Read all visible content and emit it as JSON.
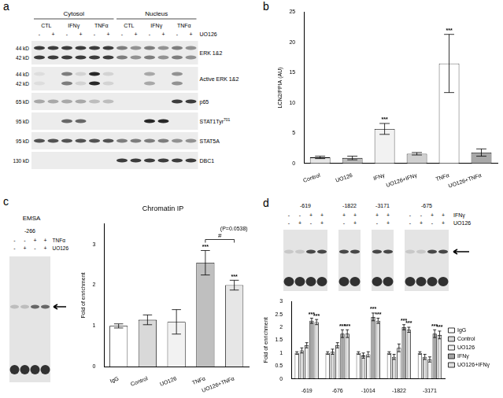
{
  "letters": [
    "a",
    "b",
    "c",
    "d"
  ],
  "blot_a": {
    "compartments": [
      "Cytosol",
      "Nucleus"
    ],
    "treatments": [
      "CTL",
      "IFNγ",
      "TNFα"
    ],
    "inhibitor": {
      "name": "UO126",
      "signs": [
        "-",
        "+",
        "-",
        "+",
        "-",
        "+"
      ]
    },
    "rows": [
      {
        "name": "ERK 1&2",
        "mw": [
          "44 kD",
          "42 kD"
        ]
      },
      {
        "name": "Active ERK 1&2",
        "mw": [
          "44 kD",
          "42 kD"
        ]
      },
      {
        "name": "p65",
        "mw": [
          "65 kD"
        ]
      },
      {
        "name": "STAT1Tyr",
        "sup": "701",
        "mw": [
          "95 kD"
        ]
      },
      {
        "name": "STAT5A",
        "mw": [
          "95 kD"
        ]
      },
      {
        "name": "DBC1",
        "mw": [
          "130 kD"
        ]
      }
    ]
  },
  "emsa_c": {
    "label": "EMSA",
    "probe": "-266",
    "rows": [
      {
        "name": "TNFα",
        "signs": [
          "-",
          "-",
          "+",
          "+"
        ]
      },
      {
        "name": "UO126",
        "signs": [
          "-",
          "+",
          "-",
          "+"
        ]
      }
    ]
  },
  "emsa_d": {
    "row_names": [
      "IFNγ",
      "UO126"
    ],
    "groups": [
      {
        "probe": "-619",
        "signs": [
          [
            "-",
            "-",
            "+",
            "+"
          ],
          [
            "-",
            "+",
            "-",
            "+"
          ]
        ]
      },
      {
        "probe": "-1822",
        "signs": [
          [
            "+",
            "+"
          ],
          [
            "-",
            "+"
          ]
        ]
      },
      {
        "probe": "-3171",
        "signs": [
          [
            "+",
            "+"
          ],
          [
            "-",
            "+"
          ]
        ]
      },
      {
        "probe": "-675",
        "signs": [
          [
            "-",
            "-",
            "+",
            "+"
          ],
          [
            "-",
            "+",
            "-",
            "+"
          ]
        ]
      }
    ]
  },
  "chart_data": [
    {
      "type": "bar",
      "ylabel": "LCN2/PPIA (AU)",
      "categories": [
        "Control",
        "UO126",
        "IFNγ",
        "UO126+IFNγ",
        "TNFα",
        "UO126+TNFα"
      ],
      "values": [
        1,
        0.9,
        5.7,
        1.6,
        16.5,
        1.8
      ],
      "errors": [
        0.2,
        0.3,
        0.9,
        0.2,
        4.8,
        0.6
      ],
      "colors": [
        "#e6e6e6",
        "#bdbdbd",
        "#f2f2f2",
        "#d0d0d0",
        "#ffffff",
        "#a8a8a8"
      ],
      "ylim": [
        0,
        25
      ],
      "yticks": [
        0,
        5,
        10,
        15,
        20,
        25
      ],
      "annotations": [
        {
          "category": "IFNγ",
          "text": "***"
        },
        {
          "category": "TNFα",
          "text": "***"
        }
      ]
    },
    {
      "type": "bar",
      "title": "Chromatin IP",
      "ylabel": "Fold of enrichment",
      "categories": [
        "IgG",
        "Control",
        "UO126",
        "TNFα",
        "UO126+TNFα"
      ],
      "values": [
        1,
        1.15,
        1.1,
        2.55,
        2
      ],
      "errors": [
        0.05,
        0.12,
        0.3,
        0.3,
        0.12
      ],
      "colors": [
        "#ffffff",
        "#d9d9d9",
        "#f2f2f2",
        "#bfbfbf",
        "#e6e6e6"
      ],
      "ylim": [
        0,
        3.5
      ],
      "yticks": [
        0,
        1,
        2,
        3
      ],
      "annotations": [
        {
          "category": "TNFα",
          "text": "***"
        },
        {
          "category": "UO126+TNFα",
          "text": "***"
        }
      ],
      "brackets": [
        {
          "from": "TNFα",
          "to": "UO126+TNFα",
          "label": "#",
          "note": "(P=0.0538)"
        }
      ]
    },
    {
      "type": "bar",
      "ylabel": "Fold of enrichment",
      "categories": [
        "-619",
        "-676",
        "-1014",
        "-1822",
        "-3171"
      ],
      "series": [
        {
          "name": "IgG",
          "color": "#ffffff",
          "values": [
            1,
            1,
            1,
            1,
            1
          ],
          "errors": [
            0.05,
            0.05,
            0.05,
            0.05,
            0.05
          ]
        },
        {
          "name": "Control",
          "color": "#d9d9d9",
          "values": [
            1.1,
            1.05,
            0.9,
            0.85,
            0.85
          ],
          "errors": [
            0.1,
            0.1,
            0.1,
            0.1,
            0.1
          ]
        },
        {
          "name": "UO126",
          "color": "#f2f2f2",
          "values": [
            1.3,
            1.3,
            0.95,
            1.2,
            0.75
          ],
          "errors": [
            0.1,
            0.1,
            0.1,
            0.15,
            0.1
          ]
        },
        {
          "name": "IFNγ",
          "color": "#a6a6a6",
          "values": [
            2.25,
            1.75,
            2.4,
            2,
            1.75
          ],
          "errors": [
            0.1,
            0.15,
            0.15,
            0.1,
            0.15
          ]
        },
        {
          "name": "UO126+IFNγ",
          "color": "#e0e0e0",
          "values": [
            2.2,
            1.75,
            2.25,
            1.9,
            1.7
          ],
          "errors": [
            0.1,
            0.15,
            0.1,
            0.1,
            0.15
          ]
        }
      ],
      "ylim": [
        0,
        3
      ],
      "yticks": [
        0,
        0.5,
        1,
        1.5,
        2,
        2.5,
        3
      ],
      "legend": "right",
      "annotations": [
        {
          "series": "IFNγ",
          "category": "-619",
          "text": "***"
        },
        {
          "series": "UO126+IFNγ",
          "category": "-619",
          "text": "***"
        },
        {
          "series": "IFNγ",
          "category": "-676",
          "text": "***"
        },
        {
          "series": "UO126+IFNγ",
          "category": "-676",
          "text": "***"
        },
        {
          "series": "IFNγ",
          "category": "-1014",
          "text": "***"
        },
        {
          "series": "UO126+IFNγ",
          "category": "-1014",
          "text": "***"
        },
        {
          "series": "IFNγ",
          "category": "-1822",
          "text": "***"
        },
        {
          "series": "UO126+IFNγ",
          "category": "-1822",
          "text": "***"
        },
        {
          "series": "IFNγ",
          "category": "-3171",
          "text": "***"
        },
        {
          "series": "UO126+IFNγ",
          "category": "-3171",
          "text": "***"
        }
      ]
    }
  ]
}
